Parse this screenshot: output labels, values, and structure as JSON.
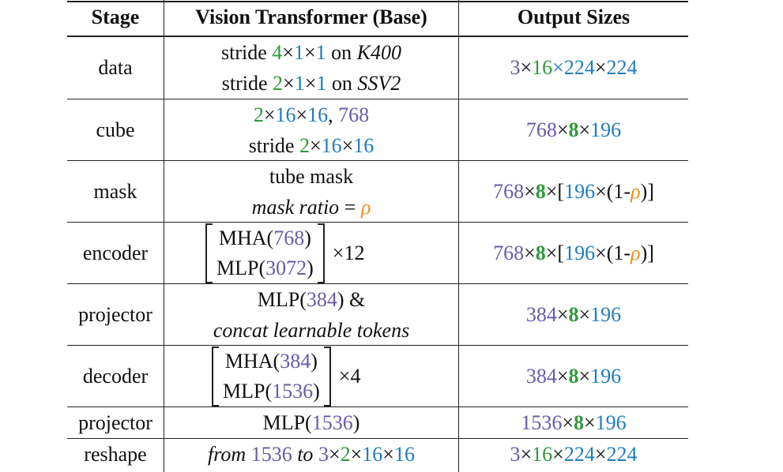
{
  "headers": {
    "stage": "Stage",
    "vit": "Vision Transformer (Base)",
    "output": "Output Sizes"
  },
  "times": "×",
  "rows": [
    {
      "stage": "data",
      "vit_l1": {
        "a": "stride ",
        "b": "4",
        "c": "1",
        "d": "1",
        "e": " on ",
        "f": "K400"
      },
      "vit_l2": {
        "a": "stride ",
        "b": "2",
        "c": "1",
        "d": "1",
        "e": " on ",
        "f": "SSV2"
      },
      "out": {
        "a": "3",
        "b": "16",
        "c": "224",
        "d": "224"
      }
    },
    {
      "stage": "cube",
      "vit_l1": {
        "a": "2",
        "b": "16",
        "c": "16",
        "sep": ", ",
        "d": "768"
      },
      "vit_l2": {
        "a": "stride ",
        "b": "2",
        "c": "16",
        "d": "16"
      },
      "out": {
        "a": "768",
        "b": "8",
        "c": "196"
      }
    },
    {
      "stage": "mask",
      "vit_l1": "tube mask",
      "vit_l2": {
        "a": "mask ratio",
        "b": " = ",
        "c": "ρ"
      },
      "out": {
        "a": "768",
        "b": "8",
        "c": "[",
        "d": "196",
        "e": "(1-",
        "f": "ρ",
        "g": ")]"
      }
    },
    {
      "stage": "encoder",
      "vit_l1": {
        "a": "MHA(",
        "b": "768",
        "c": ")"
      },
      "vit_l2": {
        "a": "MLP(",
        "b": "3072",
        "c": ")"
      },
      "mult": "12",
      "out": {
        "a": "768",
        "b": "8",
        "c": "[",
        "d": "196",
        "e": "(1-",
        "f": "ρ",
        "g": ")]"
      }
    },
    {
      "stage": "projector",
      "vit_l1": {
        "a": "MLP(",
        "b": "384",
        "c": ") &"
      },
      "vit_l2": "concat learnable tokens",
      "out": {
        "a": "384",
        "b": "8",
        "c": "196"
      }
    },
    {
      "stage": "decoder",
      "vit_l1": {
        "a": "MHA(",
        "b": "384",
        "c": ")"
      },
      "vit_l2": {
        "a": "MLP(",
        "b": "1536",
        "c": ")"
      },
      "mult": "4",
      "out": {
        "a": "384",
        "b": "8",
        "c": "196"
      }
    },
    {
      "stage": "projector",
      "vit": {
        "a": "MLP(",
        "b": "1536",
        "c": ")"
      },
      "out": {
        "a": "1536",
        "b": "8",
        "c": "196"
      }
    },
    {
      "stage": "reshape",
      "vit": {
        "a": "from",
        "b": "1536",
        "c": "to",
        "d": "3",
        "e": "2",
        "f": "16",
        "g": "16"
      },
      "out": {
        "a": "3",
        "b": "16",
        "c": "224",
        "d": "224"
      }
    }
  ],
  "colors": {
    "purple": "#6b5aa8",
    "green": "#2e9a3a",
    "blue": "#1f7dbb",
    "orange": "#f0901e"
  }
}
